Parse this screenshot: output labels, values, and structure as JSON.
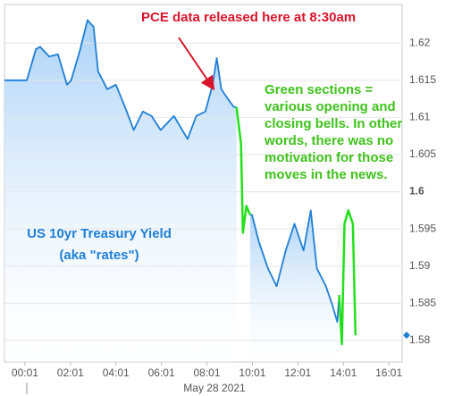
{
  "chart_data": {
    "type": "line",
    "xlabel": "May 28 2021",
    "xlim": [
      -53,
      996
    ],
    "xticks": [
      {
        "value": 1,
        "label": "00:01"
      },
      {
        "value": 121,
        "label": "02:01"
      },
      {
        "value": 241,
        "label": "04:01"
      },
      {
        "value": 361,
        "label": "06:01"
      },
      {
        "value": 481,
        "label": "08:01"
      },
      {
        "value": 601,
        "label": "10:01"
      },
      {
        "value": 721,
        "label": "12:01"
      },
      {
        "value": 841,
        "label": "14:01"
      },
      {
        "value": 961,
        "label": "16:01"
      }
    ],
    "ylim": [
      1.5771,
      1.6252
    ],
    "yticks": [
      1.58,
      1.585,
      1.59,
      1.595,
      1.6,
      1.605,
      1.61,
      1.615,
      1.62
    ],
    "grid": true,
    "series": [
      {
        "color": "#1e7fd6",
        "x": [
          -53,
          6,
          30,
          41,
          65,
          88,
          112,
          123,
          147,
          166,
          182,
          194,
          218,
          241,
          265,
          288,
          312,
          335,
          359,
          394,
          430,
          453,
          477,
          496,
          507,
          519,
          535,
          552,
          559,
          null,
          595,
          600,
          618,
          642,
          665,
          689,
          712,
          736,
          755,
          771,
          795,
          811,
          825,
          830
        ],
        "values": [
          1.615,
          1.615,
          1.6192,
          1.6195,
          1.6182,
          1.6185,
          1.6144,
          1.615,
          1.6192,
          1.6231,
          1.6222,
          1.6162,
          1.6138,
          1.6144,
          1.6114,
          1.6083,
          1.6108,
          1.6102,
          1.6083,
          1.6102,
          1.6071,
          1.6102,
          1.6108,
          1.6144,
          1.618,
          1.6138,
          1.6126,
          1.6114,
          1.6114,
          null,
          1.5969,
          1.5969,
          1.5933,
          1.5897,
          1.5873,
          1.5921,
          1.5957,
          1.5921,
          1.5975,
          1.5897,
          1.5873,
          1.5849,
          1.5825,
          1.5861
        ]
      },
      {
        "color": "#22e01a",
        "x": [
          559,
          571,
          576,
          585,
          595,
          null,
          830,
          837,
          844,
          854,
          866,
          873
        ],
        "values": [
          1.6114,
          1.6065,
          1.5945,
          1.5981,
          1.5969,
          null,
          1.5861,
          1.5795,
          1.5957,
          1.5975,
          1.5957,
          1.5807
        ]
      }
    ],
    "annotations": {
      "pce": "PCE data released here at 8:30am",
      "bells": [
        "Green sections =",
        "various opening and",
        "closing bells.  In other",
        "words, there was no",
        "motivation for those",
        "moves in the news."
      ],
      "label": [
        "US 10yr Treasury Yield",
        "(aka \"rates\")"
      ]
    }
  }
}
